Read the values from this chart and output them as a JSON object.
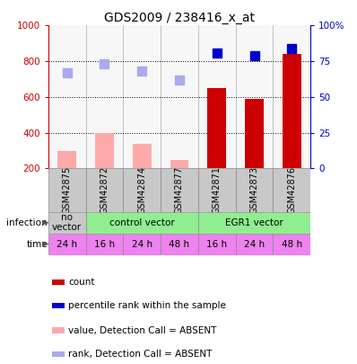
{
  "title": "GDS2009 / 238416_x_at",
  "samples": [
    "GSM42875",
    "GSM42872",
    "GSM42874",
    "GSM42877",
    "GSM42871",
    "GSM42873",
    "GSM42876"
  ],
  "x_positions": [
    0,
    1,
    2,
    3,
    4,
    5,
    6
  ],
  "bar_values": [
    300,
    400,
    340,
    250,
    650,
    590,
    840
  ],
  "bar_absent": [
    true,
    true,
    true,
    true,
    false,
    false,
    false
  ],
  "rank_values": [
    67,
    73,
    68,
    62,
    81,
    79,
    84
  ],
  "rank_absent": [
    true,
    true,
    true,
    true,
    false,
    false,
    false
  ],
  "ylim_left": [
    200,
    1000
  ],
  "ylim_right": [
    0,
    100
  ],
  "yticks_left": [
    200,
    400,
    600,
    800,
    1000
  ],
  "yticks_right": [
    0,
    25,
    50,
    75,
    100
  ],
  "time_labels": [
    "24 h",
    "16 h",
    "24 h",
    "48 h",
    "16 h",
    "24 h",
    "48 h"
  ],
  "time_color": "#ee82ee",
  "infection_no_vector_color": "#c8c8c8",
  "infection_control_color": "#90ee90",
  "infection_egr1_color": "#90ee90",
  "bar_color_present": "#cc0000",
  "bar_color_absent": "#ffaaaa",
  "rank_color_present": "#0000cc",
  "rank_color_absent": "#aaaaee",
  "label_color_left": "#cc0000",
  "label_color_right": "#0000cc",
  "sample_row_color": "#c8c8c8",
  "bar_width": 0.5,
  "rank_marker_size": 55,
  "dotted_lines": [
    400,
    600,
    800
  ],
  "legend_items": [
    [
      "#cc0000",
      "count"
    ],
    [
      "#0000cc",
      "percentile rank within the sample"
    ],
    [
      "#ffaaaa",
      "value, Detection Call = ABSENT"
    ],
    [
      "#aaaaee",
      "rank, Detection Call = ABSENT"
    ]
  ]
}
